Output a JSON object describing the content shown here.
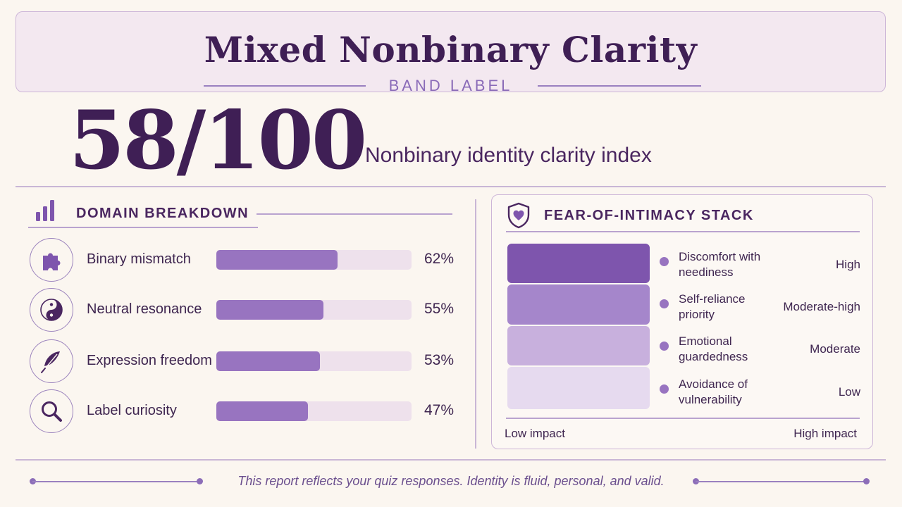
{
  "header": {
    "title": "Mixed Nonbinary Clarity",
    "band_label": "BAND LABEL"
  },
  "score": {
    "value": "58/100",
    "label": "Nonbinary identity clarity index"
  },
  "domains": {
    "title": "DOMAIN BREAKDOWN",
    "icon": "bar-chart-icon",
    "items": [
      {
        "label": "Binary mismatch",
        "percent_text": "62%",
        "value": 62,
        "icon": "puzzle-icon"
      },
      {
        "label": "Neutral resonance",
        "percent_text": "55%",
        "value": 55,
        "icon": "yin-yang-icon"
      },
      {
        "label": "Expression freedom",
        "percent_text": "53%",
        "value": 53,
        "icon": "feather-icon"
      },
      {
        "label": "Label curiosity",
        "percent_text": "47%",
        "value": 47,
        "icon": "magnifier-icon"
      }
    ]
  },
  "fear_stack": {
    "title": "FEAR-OF-INTIMACY STACK",
    "icon": "shield-heart-icon",
    "items": [
      {
        "line1": "Discomfort with",
        "line2": "neediness",
        "level": "High",
        "color": "#7e55ad"
      },
      {
        "line1": "Self-reliance",
        "line2": "priority",
        "level": "Moderate-high",
        "color": "#a586cb"
      },
      {
        "line1": "Emotional",
        "line2": "guardedness",
        "level": "Moderate",
        "color": "#c8b0dd"
      },
      {
        "line1": "Avoidance of",
        "line2": "vulnerability",
        "level": "Low",
        "color": "#e6daef"
      }
    ],
    "impact_low": "Low impact",
    "impact_high": "High impact"
  },
  "footer": {
    "text": "This report reflects your quiz responses. Identity is fluid, personal, and valid."
  },
  "colors": {
    "primary": "#3f1f55",
    "accent": "#9874c0",
    "background": "#fbf6f0"
  }
}
